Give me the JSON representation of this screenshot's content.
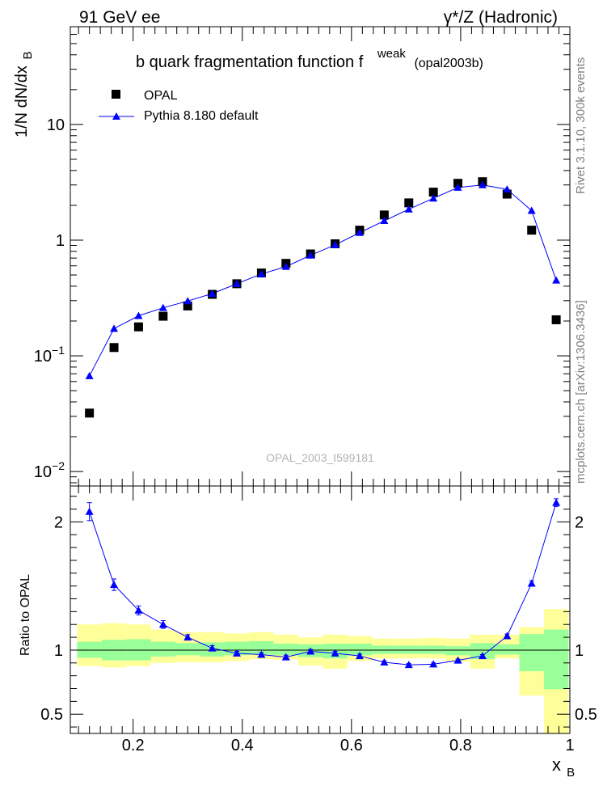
{
  "header": {
    "left": "91 GeV ee",
    "right": "γ*/Z (Hadronic)"
  },
  "side_notes": {
    "rivet": "Rivet 3.1.10,  300k events",
    "site": "mcplots.cern.ch [arXiv:1306.3436]"
  },
  "watermark": "OPAL_2003_I599181",
  "colors": {
    "data": "#000000",
    "mc": "#0000ff",
    "band_inner": "#99ff99",
    "band_outer": "#ffff99"
  },
  "chart_data": [
    {
      "type": "scatter",
      "panel": "main",
      "title": {
        "main": "b quark fragmentation function f",
        "sup": "weak",
        "suffix": "(opal2003b)"
      },
      "ylabel": {
        "main": "1/N dN/dx",
        "sub": "B"
      },
      "yscale": "log",
      "ylim": [
        0.0075,
        70
      ],
      "xlim": [
        0.085,
        1.0
      ],
      "y_ticks": [
        {
          "value": 0.01,
          "base": "10",
          "exp": "−2"
        },
        {
          "value": 0.1,
          "base": "10",
          "exp": "−1"
        },
        {
          "value": 1,
          "base": "1",
          "exp": ""
        },
        {
          "value": 10,
          "base": "10",
          "exp": ""
        }
      ],
      "legend": {
        "position": "top-left",
        "entries": [
          {
            "label": "OPAL",
            "marker": "square"
          },
          {
            "label": "Pythia 8.180 default",
            "marker": "triangle-line"
          }
        ]
      },
      "x": [
        0.12,
        0.165,
        0.21,
        0.255,
        0.3,
        0.345,
        0.39,
        0.435,
        0.48,
        0.525,
        0.57,
        0.615,
        0.66,
        0.705,
        0.75,
        0.795,
        0.84,
        0.885,
        0.93,
        0.975
      ],
      "series": [
        {
          "name": "OPAL",
          "values": [
            0.032,
            0.118,
            0.178,
            0.22,
            0.27,
            0.34,
            0.42,
            0.52,
            0.63,
            0.76,
            0.93,
            1.22,
            1.65,
            2.1,
            2.6,
            3.1,
            3.2,
            2.5,
            1.22,
            0.205
          ]
        },
        {
          "name": "Pythia 8.180 default",
          "values": [
            0.067,
            0.172,
            0.222,
            0.26,
            0.298,
            0.345,
            0.42,
            0.51,
            0.59,
            0.74,
            0.91,
            1.16,
            1.47,
            1.85,
            2.3,
            2.85,
            3.0,
            2.75,
            1.8,
            0.45
          ]
        }
      ]
    },
    {
      "type": "line",
      "panel": "ratio",
      "ylabel": "Ratio to OPAL",
      "xlabel": {
        "main": "x",
        "sub": "B"
      },
      "ylim": [
        0.35,
        2.28
      ],
      "xlim": [
        0.085,
        1.0
      ],
      "y_ticks": [
        {
          "value": 0.5,
          "label": "0.5"
        },
        {
          "value": 1,
          "label": "1"
        },
        {
          "value": 2,
          "label": "2"
        }
      ],
      "x_ticks": [
        {
          "value": 0.2,
          "label": "0.2"
        },
        {
          "value": 0.4,
          "label": "0.4"
        },
        {
          "value": 0.6,
          "label": "0.6"
        },
        {
          "value": 0.8,
          "label": "0.8"
        },
        {
          "value": 1.0,
          "label": "1"
        }
      ],
      "bins": [
        0.0975,
        0.1425,
        0.1875,
        0.2325,
        0.2775,
        0.3225,
        0.3675,
        0.4125,
        0.4575,
        0.5025,
        0.5475,
        0.5925,
        0.6375,
        0.6825,
        0.7275,
        0.7725,
        0.8175,
        0.8625,
        0.9075,
        0.9525,
        0.9975
      ],
      "band_inner": {
        "low": [
          0.94,
          0.92,
          0.92,
          0.95,
          0.96,
          0.95,
          0.96,
          0.965,
          0.96,
          0.945,
          0.935,
          0.96,
          0.97,
          0.97,
          0.97,
          0.96,
          0.93,
          0.965,
          0.835,
          0.695
        ],
        "high": [
          1.065,
          1.08,
          1.085,
          1.065,
          1.055,
          1.06,
          1.065,
          1.07,
          1.05,
          1.045,
          1.05,
          1.05,
          1.035,
          1.035,
          1.035,
          1.03,
          1.055,
          1.045,
          1.125,
          1.16
        ]
      },
      "band_outer": {
        "low": [
          0.875,
          0.865,
          0.875,
          0.9,
          0.905,
          0.905,
          0.915,
          0.93,
          0.925,
          0.88,
          0.855,
          0.915,
          0.935,
          0.935,
          0.935,
          0.91,
          0.855,
          0.935,
          0.645,
          0.35
        ],
        "high": [
          1.2,
          1.21,
          1.2,
          1.16,
          1.14,
          1.14,
          1.13,
          1.14,
          1.12,
          1.1,
          1.12,
          1.11,
          1.09,
          1.09,
          1.095,
          1.09,
          1.12,
          1.12,
          1.18,
          1.32
        ]
      },
      "x": [
        0.12,
        0.165,
        0.21,
        0.255,
        0.3,
        0.345,
        0.39,
        0.435,
        0.48,
        0.525,
        0.57,
        0.615,
        0.66,
        0.705,
        0.75,
        0.795,
        0.84,
        0.885,
        0.93,
        0.975
      ],
      "series": [
        {
          "name": "Pythia 8.180 default",
          "values": [
            2.08,
            1.51,
            1.31,
            1.2,
            1.1,
            1.015,
            0.975,
            0.965,
            0.945,
            0.99,
            0.975,
            0.955,
            0.905,
            0.885,
            0.89,
            0.92,
            0.955,
            1.11,
            1.52,
            2.15
          ]
        }
      ],
      "errors": [
        0.07,
        0.045,
        0.035,
        0.03,
        0.02,
        0.02,
        0.015,
        0.015,
        0.015,
        0.015,
        0.015,
        0.015,
        0.01,
        0.01,
        0.01,
        0.01,
        0.01,
        0.015,
        0.02,
        0.03
      ]
    }
  ]
}
